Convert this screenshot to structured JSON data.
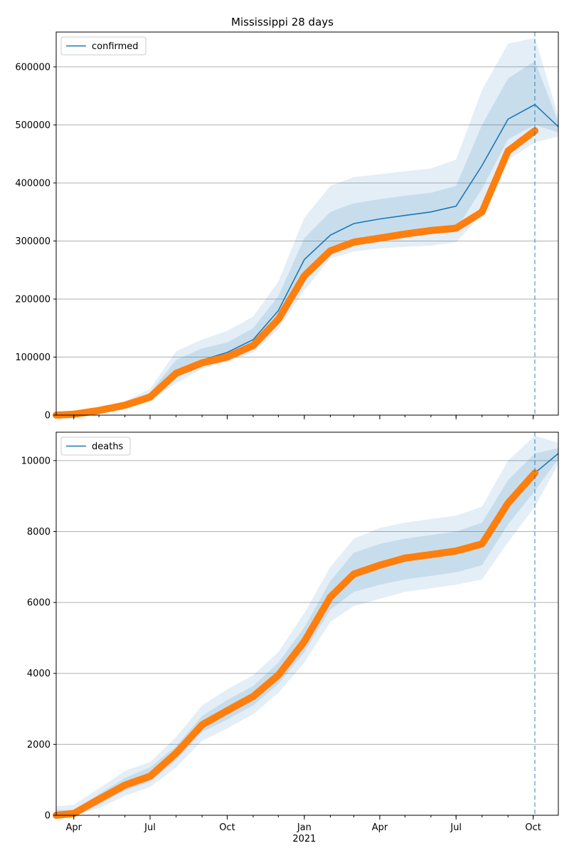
{
  "figure_title": "Mississippi 28 days",
  "colors": {
    "model_line": "#1f77b4",
    "band": "#1f77b4",
    "observed_points": "#ff7f0e",
    "grid": "#b0b0b0",
    "axis": "#000000",
    "forecast_marker": "#1f77b4"
  },
  "chart_data": [
    {
      "type": "line",
      "title": "Mississippi 28 days",
      "legend": {
        "label": "confirmed",
        "placement": "upper-left"
      },
      "x_ticks": [
        {
          "date": "2020-04-01",
          "label": "Apr",
          "sublabel": ""
        },
        {
          "date": "2020-07-01",
          "label": "Jul",
          "sublabel": ""
        },
        {
          "date": "2020-10-01",
          "label": "Oct",
          "sublabel": ""
        },
        {
          "date": "2021-01-01",
          "label": "Jan",
          "sublabel": "2021"
        },
        {
          "date": "2021-04-01",
          "label": "Apr",
          "sublabel": ""
        },
        {
          "date": "2021-07-01",
          "label": "Jul",
          "sublabel": ""
        },
        {
          "date": "2021-10-01",
          "label": "Oct",
          "sublabel": ""
        }
      ],
      "x_range": [
        "2020-03-11",
        "2021-10-31"
      ],
      "ylim": [
        0,
        660000
      ],
      "y_ticks": [
        0,
        100000,
        200000,
        300000,
        400000,
        500000,
        600000
      ],
      "y_grid": true,
      "forecast_date": "2021-10-03",
      "model": {
        "name": "confirmed",
        "x": [
          "2020-03-11",
          "2020-04-01",
          "2020-05-01",
          "2020-06-01",
          "2020-07-01",
          "2020-08-01",
          "2020-09-01",
          "2020-10-01",
          "2020-11-01",
          "2020-12-01",
          "2021-01-01",
          "2021-02-01",
          "2021-03-01",
          "2021-04-01",
          "2021-05-01",
          "2021-06-01",
          "2021-07-01",
          "2021-08-01",
          "2021-09-01",
          "2021-10-03",
          "2021-10-31"
        ],
        "y": [
          0,
          2000,
          8000,
          18000,
          32000,
          75000,
          95000,
          108000,
          130000,
          180000,
          268000,
          310000,
          330000,
          338000,
          344000,
          350000,
          360000,
          430000,
          510000,
          535000,
          497000
        ],
        "band_outer_upper": [
          0,
          3000,
          12000,
          24000,
          45000,
          110000,
          130000,
          145000,
          170000,
          230000,
          340000,
          395000,
          410000,
          415000,
          420000,
          425000,
          440000,
          560000,
          640000,
          650000,
          515000
        ],
        "band_outer_lower": [
          0,
          1000,
          5000,
          12000,
          26000,
          55000,
          80000,
          92000,
          108000,
          148000,
          215000,
          270000,
          282000,
          287000,
          290000,
          292000,
          298000,
          345000,
          440000,
          470000,
          480000
        ],
        "band_inner_upper": [
          0,
          2500,
          10000,
          21000,
          39000,
          95000,
          115000,
          125000,
          150000,
          205000,
          305000,
          350000,
          365000,
          372000,
          378000,
          383000,
          395000,
          500000,
          580000,
          610000,
          505000
        ],
        "band_inner_lower": [
          0,
          1500,
          6500,
          15000,
          29000,
          65000,
          86000,
          98000,
          118000,
          165000,
          240000,
          290000,
          303000,
          308000,
          312000,
          316000,
          320000,
          390000,
          475000,
          500000,
          487000
        ]
      },
      "observed": {
        "name": "observed",
        "x": [
          "2020-03-11",
          "2020-04-01",
          "2020-05-01",
          "2020-06-01",
          "2020-07-01",
          "2020-08-01",
          "2020-09-01",
          "2020-10-01",
          "2020-11-01",
          "2020-12-01",
          "2021-01-01",
          "2021-02-01",
          "2021-03-01",
          "2021-04-01",
          "2021-05-01",
          "2021-06-01",
          "2021-07-01",
          "2021-08-01",
          "2021-09-01",
          "2021-10-03"
        ],
        "y": [
          0,
          1500,
          8000,
          17000,
          31000,
          72000,
          90000,
          100000,
          120000,
          165000,
          240000,
          283000,
          298000,
          305000,
          312000,
          318000,
          322000,
          350000,
          455000,
          490000
        ]
      }
    },
    {
      "type": "line",
      "title": "",
      "legend": {
        "label": "deaths",
        "placement": "upper-left"
      },
      "x_ticks": [
        {
          "date": "2020-04-01",
          "label": "Apr",
          "sublabel": ""
        },
        {
          "date": "2020-07-01",
          "label": "Jul",
          "sublabel": ""
        },
        {
          "date": "2020-10-01",
          "label": "Oct",
          "sublabel": ""
        },
        {
          "date": "2021-01-01",
          "label": "Jan",
          "sublabel": "2021"
        },
        {
          "date": "2021-04-01",
          "label": "Apr",
          "sublabel": ""
        },
        {
          "date": "2021-07-01",
          "label": "Jul",
          "sublabel": ""
        },
        {
          "date": "2021-10-01",
          "label": "Oct",
          "sublabel": ""
        }
      ],
      "x_range": [
        "2020-03-11",
        "2021-10-31"
      ],
      "ylim": [
        0,
        10800
      ],
      "y_ticks": [
        0,
        2000,
        4000,
        6000,
        8000,
        10000
      ],
      "y_grid": true,
      "forecast_date": "2021-10-03",
      "model": {
        "name": "deaths",
        "x": [
          "2020-03-11",
          "2020-04-01",
          "2020-05-01",
          "2020-06-01",
          "2020-07-01",
          "2020-08-01",
          "2020-09-01",
          "2020-10-01",
          "2020-11-01",
          "2020-12-01",
          "2021-01-01",
          "2021-02-01",
          "2021-03-01",
          "2021-04-01",
          "2021-05-01",
          "2021-06-01",
          "2021-07-01",
          "2021-08-01",
          "2021-09-01",
          "2021-10-03",
          "2021-10-31"
        ],
        "y": [
          0,
          50,
          400,
          850,
          1100,
          1750,
          2550,
          2950,
          3350,
          3950,
          4900,
          6150,
          6800,
          7050,
          7250,
          7400,
          7500,
          7700,
          8800,
          9650,
          10200
        ],
        "band_outer_upper": [
          250,
          300,
          750,
          1250,
          1500,
          2200,
          3100,
          3550,
          3950,
          4600,
          5700,
          7000,
          7800,
          8100,
          8250,
          8350,
          8450,
          8700,
          10000,
          10700,
          10500
        ],
        "band_outer_lower": [
          0,
          0,
          200,
          550,
          800,
          1350,
          2100,
          2450,
          2850,
          3450,
          4300,
          5450,
          5900,
          6100,
          6300,
          6400,
          6500,
          6650,
          7700,
          8700,
          9900
        ],
        "band_inner_upper": [
          150,
          150,
          600,
          1050,
          1350,
          1950,
          2800,
          3250,
          3650,
          4300,
          5300,
          6600,
          7400,
          7650,
          7800,
          7900,
          8000,
          8250,
          9450,
          10200,
          10350
        ],
        "band_inner_lower": [
          0,
          0,
          300,
          700,
          950,
          1550,
          2350,
          2700,
          3100,
          3700,
          4600,
          5800,
          6300,
          6500,
          6650,
          6750,
          6850,
          7050,
          8200,
          9150,
          10050
        ]
      },
      "observed": {
        "name": "observed",
        "x": [
          "2020-03-11",
          "2020-04-01",
          "2020-05-01",
          "2020-06-01",
          "2020-07-01",
          "2020-08-01",
          "2020-09-01",
          "2020-10-01",
          "2020-11-01",
          "2020-12-01",
          "2021-01-01",
          "2021-02-01",
          "2021-03-01",
          "2021-04-01",
          "2021-05-01",
          "2021-06-01",
          "2021-07-01",
          "2021-08-01",
          "2021-09-01",
          "2021-10-03"
        ],
        "y": [
          0,
          50,
          450,
          850,
          1100,
          1750,
          2550,
          2950,
          3350,
          3950,
          4900,
          6150,
          6800,
          7050,
          7250,
          7350,
          7450,
          7650,
          8800,
          9650
        ]
      }
    }
  ]
}
